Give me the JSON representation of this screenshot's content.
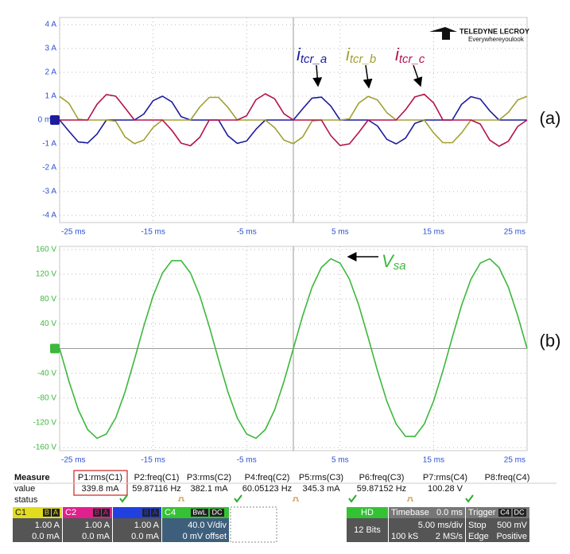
{
  "chart_data": [
    {
      "type": "line",
      "panel_label": "(a)",
      "x": [
        -25,
        -24,
        -23,
        -22,
        -21,
        -20,
        -19,
        -18,
        -17,
        -16,
        -15,
        -14,
        -13,
        -12,
        -11,
        -10,
        -9,
        -8,
        -7,
        -6,
        -5,
        -4,
        -3,
        -2,
        -1,
        0,
        1,
        2,
        3,
        4,
        5,
        6,
        7,
        8,
        9,
        10,
        11,
        12,
        13,
        14,
        15,
        16,
        17,
        18,
        19,
        20,
        21,
        22,
        23,
        24,
        25
      ],
      "series": [
        {
          "name": {
            "symbol": "i",
            "subscript": "tcr_a"
          },
          "color": "#1c1c9c",
          "values": [
            0,
            -0.47,
            -0.92,
            -0.96,
            -0.59,
            0,
            0,
            0,
            0,
            0.25,
            0.81,
            1.0,
            0.76,
            0.14,
            0,
            0,
            0,
            0,
            -0.66,
            -0.98,
            -0.88,
            -0.39,
            0,
            0,
            0,
            0,
            0.47,
            0.92,
            0.96,
            0.59,
            0,
            0,
            0,
            0,
            -0.25,
            -0.81,
            -1.0,
            -0.76,
            -0.14,
            0,
            0,
            0,
            0,
            0.66,
            0.98,
            0.88,
            0.39,
            0,
            0,
            0,
            0
          ]
        },
        {
          "name": {
            "symbol": "i",
            "subscript": "tcr_b"
          },
          "color": "#a3a032",
          "values": [
            0.99,
            0.7,
            0.03,
            0,
            0,
            0,
            -0.05,
            -0.71,
            -0.99,
            -0.84,
            -0.31,
            0,
            0,
            0,
            0,
            0.55,
            0.95,
            0.95,
            0.53,
            0,
            0,
            0,
            0,
            -0.32,
            -0.84,
            -0.99,
            -0.71,
            -0.04,
            0,
            0,
            0,
            0.05,
            0.71,
            0.99,
            0.84,
            0.31,
            0,
            0,
            0,
            0,
            -0.54,
            -0.95,
            -0.95,
            -0.54,
            0,
            0,
            0,
            0,
            0.32,
            0.84,
            0.99
          ]
        },
        {
          "name": {
            "symbol": "i",
            "subscript": "tcr_c"
          },
          "color": "#b3124f",
          "values": [
            0,
            0,
            0,
            0,
            0.66,
            1.07,
            1.0,
            0.51,
            0,
            0,
            0,
            0,
            -0.43,
            -0.97,
            -1.08,
            -0.72,
            0,
            0,
            0,
            0,
            0.18,
            0.85,
            1.1,
            0.89,
            0.26,
            0,
            0,
            0,
            0,
            -0.65,
            -1.07,
            -1.0,
            -0.52,
            0,
            0,
            0,
            0,
            0.43,
            0.97,
            1.08,
            0.72,
            0,
            0,
            0,
            0,
            -0.17,
            -0.84,
            -1.1,
            -0.89,
            -0.27,
            0
          ]
        }
      ],
      "xlim": [
        -25,
        25
      ],
      "ylim": [
        -4.3,
        4.3
      ],
      "xticks": [
        {
          "value": -25,
          "label": "-25 ms"
        },
        {
          "value": -15,
          "label": "-15 ms"
        },
        {
          "value": -5,
          "label": "-5 ms"
        },
        {
          "value": 5,
          "label": "5 ms"
        },
        {
          "value": 15,
          "label": "15 ms"
        },
        {
          "value": 25,
          "label": "25 ms"
        }
      ],
      "yticks": [
        {
          "value": 4,
          "label": "4 A"
        },
        {
          "value": 3,
          "label": "3 A"
        },
        {
          "value": 2,
          "label": "2 A"
        },
        {
          "value": 1,
          "label": "1 A"
        },
        {
          "value": 0,
          "label": "0 mA"
        },
        {
          "value": -1,
          "label": "-1 A"
        },
        {
          "value": -2,
          "label": "-2 A"
        },
        {
          "value": -3,
          "label": "-3 A"
        },
        {
          "value": -4,
          "label": "-4 A"
        }
      ],
      "grid": true,
      "tick_color": "#2c52d2"
    },
    {
      "type": "line",
      "panel_label": "(b)",
      "x": [
        -25,
        -24,
        -23,
        -22,
        -21,
        -20,
        -19,
        -18,
        -17,
        -16,
        -15,
        -14,
        -13,
        -12,
        -11,
        -10,
        -9,
        -8,
        -7,
        -6,
        -5,
        -4,
        -3,
        -2,
        -1,
        0,
        1,
        2,
        3,
        4,
        5,
        6,
        7,
        8,
        9,
        10,
        11,
        12,
        13,
        14,
        15,
        16,
        17,
        18,
        19,
        20,
        21,
        22,
        23,
        24,
        25
      ],
      "series": [
        {
          "name": {
            "symbol": "V",
            "subscript": "sa"
          },
          "color": "#3cb83c",
          "values": [
            0,
            -53,
            -99,
            -131,
            -145,
            -138,
            -112,
            -70,
            -18,
            36,
            85,
            122,
            142,
            142,
            122,
            85,
            36,
            -18,
            -70,
            -112,
            -138,
            -145,
            -131,
            -99,
            -53,
            0,
            53,
            99,
            131,
            145,
            138,
            112,
            70,
            18,
            -36,
            -85,
            -122,
            -142,
            -142,
            -122,
            -85,
            -36,
            18,
            70,
            112,
            138,
            145,
            131,
            99,
            53,
            0
          ]
        }
      ],
      "xlim": [
        -25,
        25
      ],
      "ylim": [
        -165,
        165
      ],
      "xticks": [
        {
          "value": -25,
          "label": "-25 ms"
        },
        {
          "value": -15,
          "label": "-15 ms"
        },
        {
          "value": -5,
          "label": "-5 ms"
        },
        {
          "value": 5,
          "label": "5 ms"
        },
        {
          "value": 15,
          "label": "15 ms"
        },
        {
          "value": 25,
          "label": "25 ms"
        }
      ],
      "yticks": [
        {
          "value": 160,
          "label": "160 V"
        },
        {
          "value": 120,
          "label": "120 V"
        },
        {
          "value": 80,
          "label": "80 V"
        },
        {
          "value": 40,
          "label": "40 V"
        },
        {
          "value": -40,
          "label": "-40 V"
        },
        {
          "value": -80,
          "label": "-80 V"
        },
        {
          "value": -120,
          "label": "-120 V"
        },
        {
          "value": -160,
          "label": "-160 V"
        }
      ],
      "grid": true,
      "tick_color": "#3cb83c"
    }
  ],
  "logo": {
    "brand": "TELEDYNE LECROY",
    "tagline": "Everywhereyoulook"
  },
  "measure": {
    "header": [
      "Measure",
      "P1:rms(C1)",
      "P2:freq(C1)",
      "P3:rms(C2)",
      "P4:freq(C2)",
      "P5:rms(C3)",
      "P6:freq(C3)",
      "P7:rms(C4)",
      "P8:freq(C4)"
    ],
    "rows": [
      [
        "value",
        "339.8 mA",
        "59.87116 Hz",
        "382.1 mA",
        "60.05123 Hz",
        "345.3 mA",
        "59.87152 Hz",
        "100.28 V"
      ],
      [
        "status"
      ]
    ]
  },
  "channels": [
    {
      "name": "C1",
      "tags": [
        "B",
        "A"
      ],
      "lines": [
        "1.00 A",
        "0.0 mA"
      ]
    },
    {
      "name": "C2",
      "tags": [
        "B",
        "A"
      ],
      "lines": [
        "1.00 A",
        "0.0 mA"
      ]
    },
    {
      "tags": [
        "B",
        "A"
      ],
      "lines": [
        "1.00 A",
        "0.0 mA"
      ]
    },
    {
      "name": "C4",
      "tags": [
        "BwL",
        "DC"
      ],
      "lines": [
        "40.0 V/div",
        "0 mV offset"
      ]
    }
  ],
  "acquisition": {
    "mode": "HD",
    "resolution": "12 Bits"
  },
  "timebase": {
    "title": "Timebase",
    "delay": "0.0 ms",
    "scale": "5.00 ms/div",
    "samples": "100 kS",
    "rate": "2 MS/s"
  },
  "trigger": {
    "title": "Trigger",
    "source": "C4",
    "coupling": "DC",
    "state": "Stop",
    "level": "500 mV",
    "type": "Edge",
    "slope": "Positive"
  }
}
